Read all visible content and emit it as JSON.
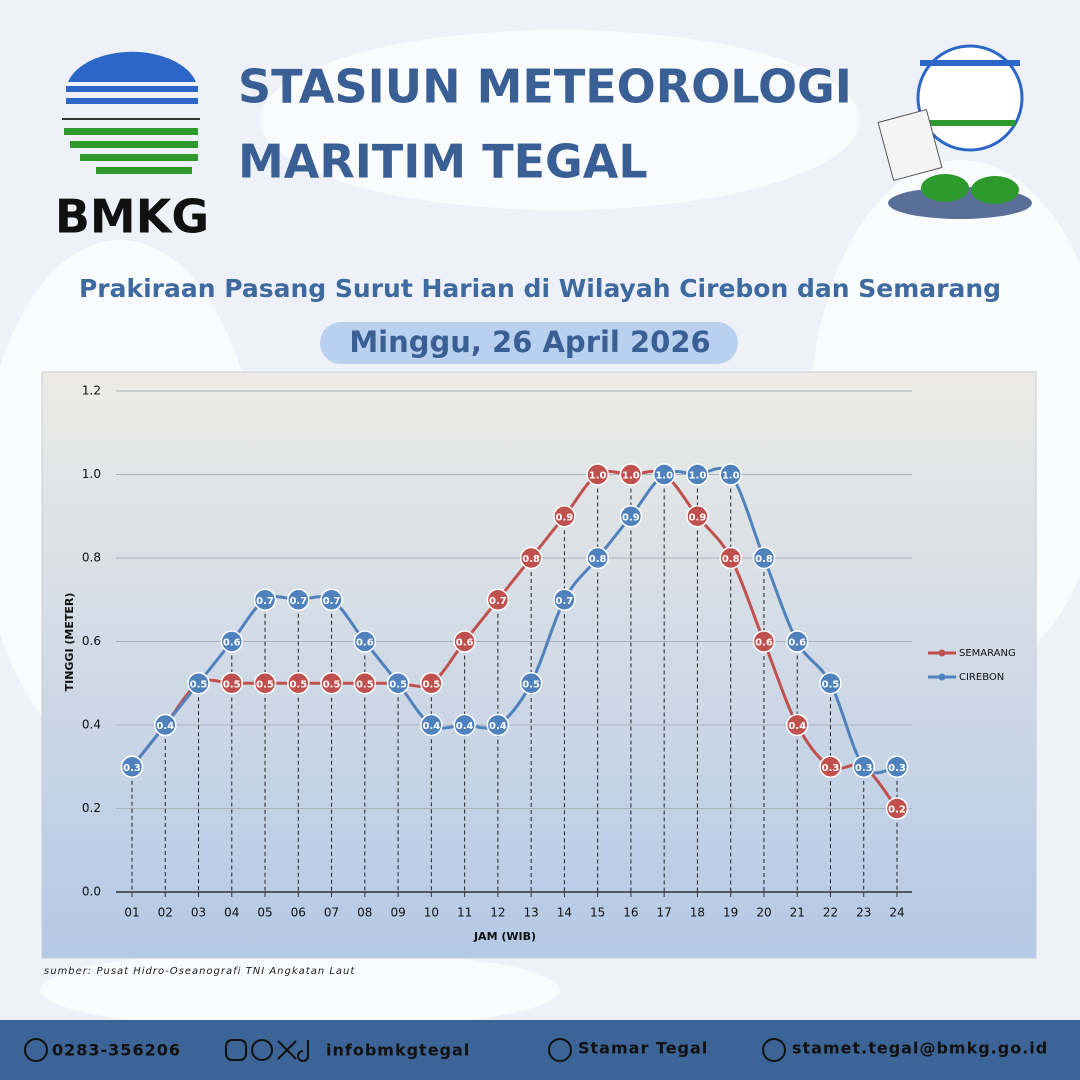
{
  "header": {
    "logo_text": "BMKG",
    "title_lines": [
      "STASIUN METEOROLOGI",
      "MARITIM TEGAL"
    ],
    "subtitle": "Prakiraan Pasang Surut Harian di Wilayah Cirebon dan Semarang",
    "date": "Minggu, 26 April 2026"
  },
  "chart_data": {
    "type": "line",
    "categories": [
      "01",
      "02",
      "03",
      "04",
      "05",
      "06",
      "07",
      "08",
      "09",
      "10",
      "11",
      "12",
      "13",
      "14",
      "15",
      "16",
      "17",
      "18",
      "19",
      "20",
      "21",
      "22",
      "23",
      "24"
    ],
    "series": [
      {
        "name": "SEMARANG",
        "color": "#c0504d",
        "values": [
          0.3,
          0.4,
          0.5,
          0.5,
          0.5,
          0.5,
          0.5,
          0.5,
          0.5,
          0.5,
          0.6,
          0.7,
          0.8,
          0.9,
          1.0,
          1.0,
          1.0,
          0.9,
          0.8,
          0.6,
          0.4,
          0.3,
          0.3,
          0.2
        ],
        "value_labels": [
          "0.3",
          "0.4",
          "0.5",
          "0.5",
          "0.5",
          "0.5",
          "0.5",
          "0.5",
          "0.5",
          "0.5",
          "0.6",
          "0.7",
          "0.8",
          "0.9",
          "1.0",
          "1.0",
          "1.0",
          "0.9",
          "0.8",
          "0.6",
          "0.4",
          "0.3",
          "0.3",
          "0.2"
        ]
      },
      {
        "name": "CIREBON",
        "color": "#4f81bd",
        "values": [
          0.3,
          0.4,
          0.5,
          0.6,
          0.7,
          0.7,
          0.7,
          0.6,
          0.5,
          0.4,
          0.4,
          0.4,
          0.5,
          0.7,
          0.8,
          0.9,
          1.0,
          1.0,
          1.0,
          0.8,
          0.6,
          0.5,
          0.3,
          0.3
        ],
        "value_labels": [
          "0.3",
          "0.4",
          "0.5",
          "0.6",
          "0.7",
          "0.7",
          "0.7",
          "0.6",
          "0.5",
          "0.4",
          "0.4",
          "0.4",
          "0.5",
          "0.7",
          "0.8",
          "0.9",
          "1.0",
          "1.0",
          "1.0",
          "0.8",
          "0.6",
          "0.5",
          "0.3",
          "0.3"
        ]
      }
    ],
    "ylim": [
      0,
      1.2
    ],
    "yticks": [
      {
        "value": 0,
        "label": "0.0"
      },
      0.2,
      0.4,
      0.6,
      0.8,
      {
        "value": 1,
        "label": "1.0"
      },
      1.2
    ],
    "y_label": "TINGGI (METER)",
    "x_label": "JAM (WIB)",
    "grid": true,
    "legend": "right",
    "source": "sumber: Pusat Hidro-Oseanografi TNI Angkatan Laut"
  },
  "footer": [
    {
      "text": "0283-356206"
    },
    {
      "text": "infobmkgtegal"
    },
    {
      "text": "Stamar Tegal"
    },
    {
      "text": "stamet.tegal@bmkg.go.id"
    }
  ]
}
